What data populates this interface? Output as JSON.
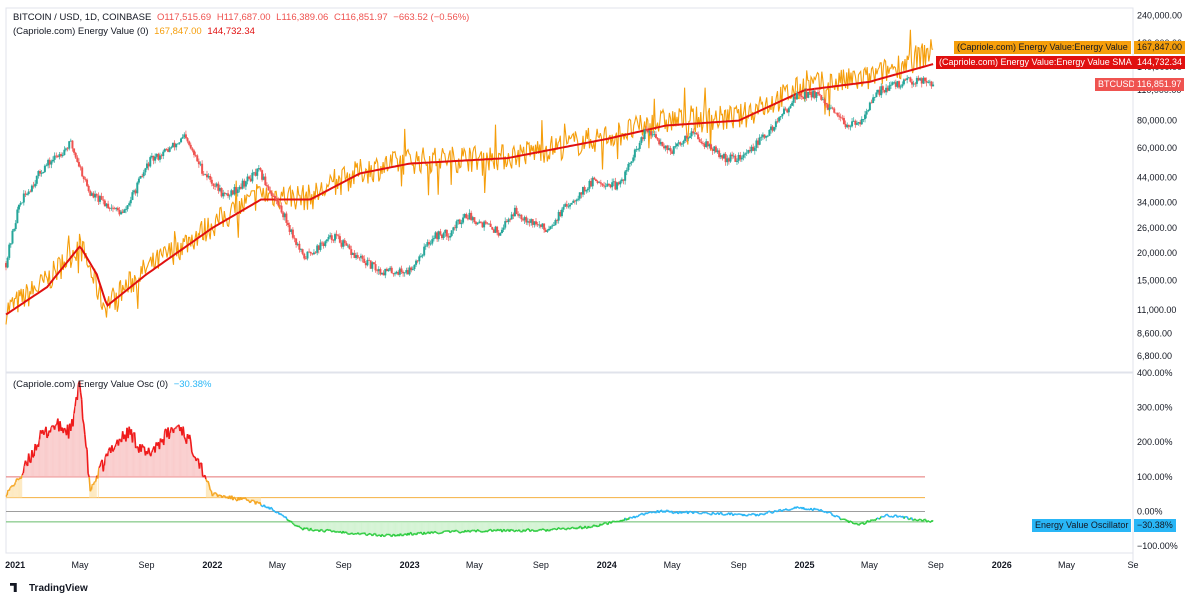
{
  "header": {
    "line1_prefix": "BITCOIN / USD, 1D, COINBASE",
    "ohlc": {
      "o": "O117,515.69",
      "h": "H117,687.00",
      "l": "L116,389.06",
      "c": "C116,851.97",
      "chg": "−663.52 (−0.56%)"
    },
    "line2_prefix": "(Capriole.com) Energy Value (0)",
    "ev_value": "167,847.00",
    "sma_value": "144,732.34",
    "osc_prefix": "(Capriole.com) Energy Value Osc (0)",
    "osc_value": "−30.38%"
  },
  "price_labels": {
    "ev_name": "(Capriole.com) Energy Value:Energy Value",
    "ev_value": "167,847.00",
    "sma_name": "(Capriole.com) Energy Value:Energy Value SMA",
    "sma_value": "144,732.34",
    "btc_name": "BTCUSD",
    "btc_value": "116,851.97",
    "osc_name": "Energy Value Oscillator",
    "osc_value": "−30.38%"
  },
  "watermark": "TradingView",
  "colors": {
    "ev": "#f59e0b",
    "sma": "#e01010",
    "up_candle": "#26a69a",
    "down_candle": "#ef5350",
    "osc_red": "#ef1b1b",
    "osc_orange": "#f5a623",
    "osc_blue": "#29b6f6",
    "osc_green": "#2ecc40",
    "level_100": "#e57373",
    "level_40": "#f5b041",
    "level_0": "#9e9e9e",
    "level_neg30": "#66bb6a"
  },
  "chart_data": [
    {
      "type": "line",
      "scale": "log",
      "ylim": [
        6000,
        260000
      ],
      "y_ticks": [
        "240,000.00",
        "180,000.00",
        "140,000.00",
        "110,000.00",
        "80,000.00",
        "60,000.00",
        "44,000.00",
        "34,000.00",
        "26,000.00",
        "20,000.00",
        "15,000.00",
        "11,000.00",
        "8,600.00",
        "6,800.00"
      ],
      "y_tick_values": [
        240000,
        180000,
        140000,
        110000,
        80000,
        60000,
        44000,
        34000,
        26000,
        20000,
        15000,
        11000,
        8600,
        6800
      ],
      "x_ticks": [
        "2021",
        "May",
        "Sep",
        "2022",
        "May",
        "Sep",
        "2023",
        "May",
        "Sep",
        "2024",
        "May",
        "Sep",
        "2025",
        "May",
        "Sep",
        "2026",
        "May",
        "Se"
      ],
      "x_tick_dates": [
        "2021-01-01",
        "2021-05-01",
        "2021-09-01",
        "2022-01-01",
        "2022-05-01",
        "2022-09-01",
        "2023-01-01",
        "2023-05-01",
        "2023-09-01",
        "2024-01-01",
        "2024-05-01",
        "2024-09-01",
        "2025-01-01",
        "2025-05-01",
        "2025-09-01",
        "2026-01-01",
        "2026-05-01",
        "2026-09-01"
      ],
      "series": [
        {
          "name": "BTCUSD",
          "kind": "candles",
          "x": [
            "2020-12-15",
            "2021-01-08",
            "2021-02-20",
            "2021-04-14",
            "2021-05-20",
            "2021-07-20",
            "2021-09-06",
            "2021-10-20",
            "2021-11-10",
            "2021-12-15",
            "2022-01-25",
            "2022-03-28",
            "2022-05-10",
            "2022-06-18",
            "2022-08-15",
            "2022-09-20",
            "2022-11-09",
            "2022-12-30",
            "2023-02-15",
            "2023-03-15",
            "2023-04-14",
            "2023-06-15",
            "2023-07-14",
            "2023-09-11",
            "2023-10-25",
            "2023-12-10",
            "2024-01-23",
            "2024-03-14",
            "2024-05-01",
            "2024-06-05",
            "2024-08-05",
            "2024-09-06",
            "2024-10-30",
            "2024-12-17",
            "2025-01-20",
            "2025-03-10",
            "2025-04-08",
            "2025-05-22",
            "2025-07-14",
            "2025-08-14",
            "2025-08-28"
          ],
          "values": [
            18000,
            33000,
            48000,
            63000,
            37000,
            30000,
            52000,
            61000,
            67000,
            47000,
            36000,
            47000,
            31000,
            19000,
            24000,
            19500,
            16500,
            16500,
            24000,
            24500,
            30000,
            25000,
            31000,
            25500,
            34000,
            43000,
            40000,
            72000,
            58000,
            71000,
            54000,
            54000,
            72000,
            104000,
            106000,
            79000,
            76000,
            111000,
            121000,
            124000,
            116852
          ]
        },
        {
          "name": "(Capriole.com) Energy Value:Energy Value",
          "kind": "line",
          "x": [
            "2020-12-15",
            "2021-03-01",
            "2021-05-01",
            "2021-06-15",
            "2021-09-01",
            "2022-01-01",
            "2022-04-01",
            "2022-07-01",
            "2022-10-01",
            "2023-01-01",
            "2023-07-01",
            "2024-01-01",
            "2024-04-20",
            "2024-09-01",
            "2025-01-01",
            "2025-05-01",
            "2025-08-28"
          ],
          "values": [
            11000,
            15000,
            22000,
            11500,
            17000,
            27000,
            37000,
            36000,
            47000,
            53000,
            55000,
            68000,
            80000,
            83000,
            115000,
            125000,
            167847
          ]
        },
        {
          "name": "(Capriole.com) Energy Value:Energy Value SMA",
          "kind": "line",
          "x": [
            "2020-12-15",
            "2021-03-01",
            "2021-05-01",
            "2021-06-01",
            "2021-06-20",
            "2021-09-01",
            "2022-01-01",
            "2022-04-01",
            "2022-07-01",
            "2022-10-01",
            "2023-01-01",
            "2023-07-01",
            "2024-01-01",
            "2024-04-20",
            "2024-09-01",
            "2025-01-01",
            "2025-05-01",
            "2025-08-28"
          ],
          "values": [
            10500,
            14000,
            21500,
            16000,
            11500,
            16000,
            26000,
            35000,
            35000,
            46000,
            51000,
            54000,
            66000,
            76000,
            80000,
            110000,
            120000,
            144732
          ]
        }
      ]
    },
    {
      "type": "line",
      "ylim": [
        -120,
        400
      ],
      "y_ticks": [
        "400.00%",
        "300.00%",
        "200.00%",
        "100.00%",
        "0.00%",
        "−100.00%"
      ],
      "y_tick_values": [
        400,
        300,
        200,
        100,
        0,
        -100
      ],
      "levels": [
        100,
        40,
        0,
        -30
      ],
      "series": [
        {
          "name": "Energy Value Oscillator",
          "x": [
            "2020-12-15",
            "2021-01-15",
            "2021-02-15",
            "2021-03-15",
            "2021-04-14",
            "2021-05-01",
            "2021-05-20",
            "2021-07-01",
            "2021-08-01",
            "2021-09-01",
            "2021-10-01",
            "2021-11-01",
            "2021-12-01",
            "2022-01-01",
            "2022-02-01",
            "2022-03-15",
            "2022-05-01",
            "2022-06-15",
            "2022-09-01",
            "2022-11-15",
            "2023-03-01",
            "2023-06-01",
            "2023-09-01",
            "2023-12-01",
            "2024-01-15",
            "2024-04-01",
            "2024-07-01",
            "2024-10-01",
            "2024-12-15",
            "2025-02-01",
            "2025-04-10",
            "2025-06-01",
            "2025-08-28"
          ],
          "values": [
            50,
            110,
            210,
            250,
            230,
            370,
            60,
            190,
            230,
            160,
            210,
            250,
            170,
            50,
            40,
            30,
            0,
            -50,
            -60,
            -70,
            -60,
            -55,
            -55,
            -45,
            -30,
            0,
            -5,
            -10,
            10,
            5,
            -40,
            -10,
            -30.38
          ]
        }
      ]
    }
  ]
}
